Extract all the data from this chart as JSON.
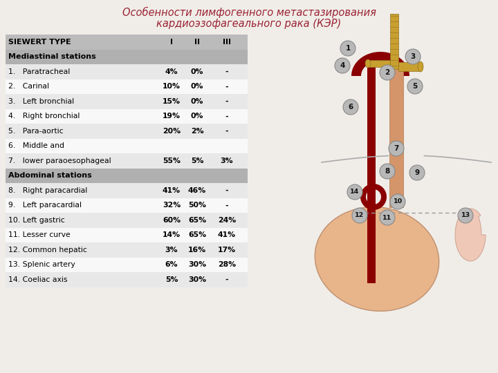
{
  "title_line1": "Особенности лимфогенного метастазирования",
  "title_line2": "кардиоэзофагеального рака (КЭР)",
  "title_color": "#9B2335",
  "bg_color": "#f0ede8",
  "table_header": [
    "SIEWERT TYPE",
    "I",
    "II",
    "III"
  ],
  "section1_title": "Mediastinal stations",
  "section2_title": "Abdominal stations",
  "rows_mediastinal": [
    [
      "1.   Paratracheal",
      "4%",
      "0%",
      "-"
    ],
    [
      "2.   Carinal",
      "10%",
      "0%",
      "-"
    ],
    [
      "3.   Left bronchial",
      "15%",
      "0%",
      "-"
    ],
    [
      "4.   Right bronchial",
      "19%",
      "0%",
      "-"
    ],
    [
      "5.   Para-aortic",
      "20%",
      "2%",
      "-"
    ],
    [
      "6.   Middle and",
      "",
      "",
      ""
    ],
    [
      "7.   lower paraoesophageal",
      "55%",
      "5%",
      "3%"
    ]
  ],
  "rows_abdominal": [
    [
      "8.   Right paracardial",
      "41%",
      "46%",
      "-"
    ],
    [
      "9.   Left paracardial",
      "32%",
      "50%",
      "-"
    ],
    [
      "10. Left gastric",
      "60%",
      "65%",
      "24%"
    ],
    [
      "11. Lesser curve",
      "14%",
      "65%",
      "41%"
    ],
    [
      "12. Common hepatic",
      "3%",
      "16%",
      "17%"
    ],
    [
      "13. Splenic artery",
      "6%",
      "30%",
      "28%"
    ],
    [
      "14. Coeliac axis",
      "5%",
      "30%",
      "-"
    ]
  ],
  "header_bg": "#bbbbbb",
  "section_bg": "#b0b0b0",
  "row_bg_even": "#e8e8e8",
  "row_bg_odd": "#f8f8f8",
  "dark_red": "#8B0000",
  "skin_color": "#D4956A",
  "light_skin": "#E8B48A",
  "yellow_trachea": "#C8A030",
  "yellow_trachea_light": "#D4B040",
  "node_fill": "#b8b8b8",
  "node_edge": "#888888",
  "spleen_fill": "#F0C8B8",
  "spleen_edge": "#D0A898"
}
